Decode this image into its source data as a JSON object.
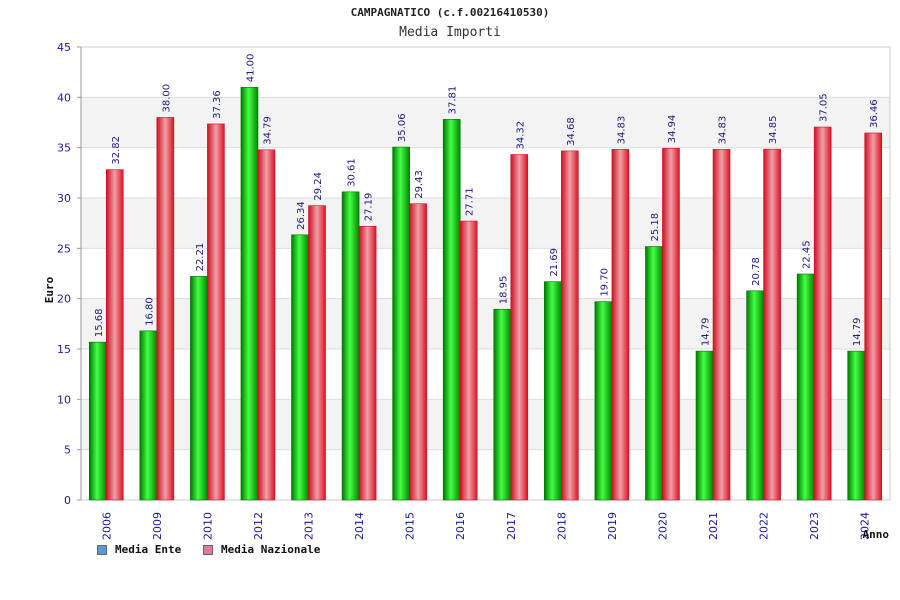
{
  "chart_data": {
    "type": "bar",
    "title": "CAMPAGNATICO (c.f.00216410530)",
    "subtitle": "Media Importi",
    "xlabel": "Anno",
    "ylabel": "Euro",
    "ylim": [
      0,
      45
    ],
    "yticks": [
      0,
      5,
      10,
      15,
      20,
      25,
      30,
      35,
      40,
      45
    ],
    "grid": true,
    "legend_position": "bottom-left",
    "categories": [
      "2006",
      "2009",
      "2010",
      "2012",
      "2013",
      "2014",
      "2015",
      "2016",
      "2017",
      "2018",
      "2019",
      "2020",
      "2021",
      "2022",
      "2023",
      "2024"
    ],
    "series": [
      {
        "name": "Media Ente",
        "legend_color": "#5b9bd5",
        "bar_color": "#00cc00",
        "values": [
          15.68,
          16.8,
          22.21,
          41.0,
          26.34,
          30.61,
          35.06,
          37.81,
          18.95,
          21.69,
          19.7,
          25.18,
          14.79,
          20.78,
          22.45,
          14.79
        ]
      },
      {
        "name": "Media Nazionale",
        "legend_color": "#e07aa0",
        "bar_color": "#ee2233",
        "values": [
          32.82,
          38.0,
          37.36,
          34.79,
          29.24,
          27.19,
          29.43,
          27.71,
          34.32,
          34.68,
          34.83,
          34.94,
          34.83,
          34.85,
          37.05,
          36.46
        ]
      }
    ]
  }
}
